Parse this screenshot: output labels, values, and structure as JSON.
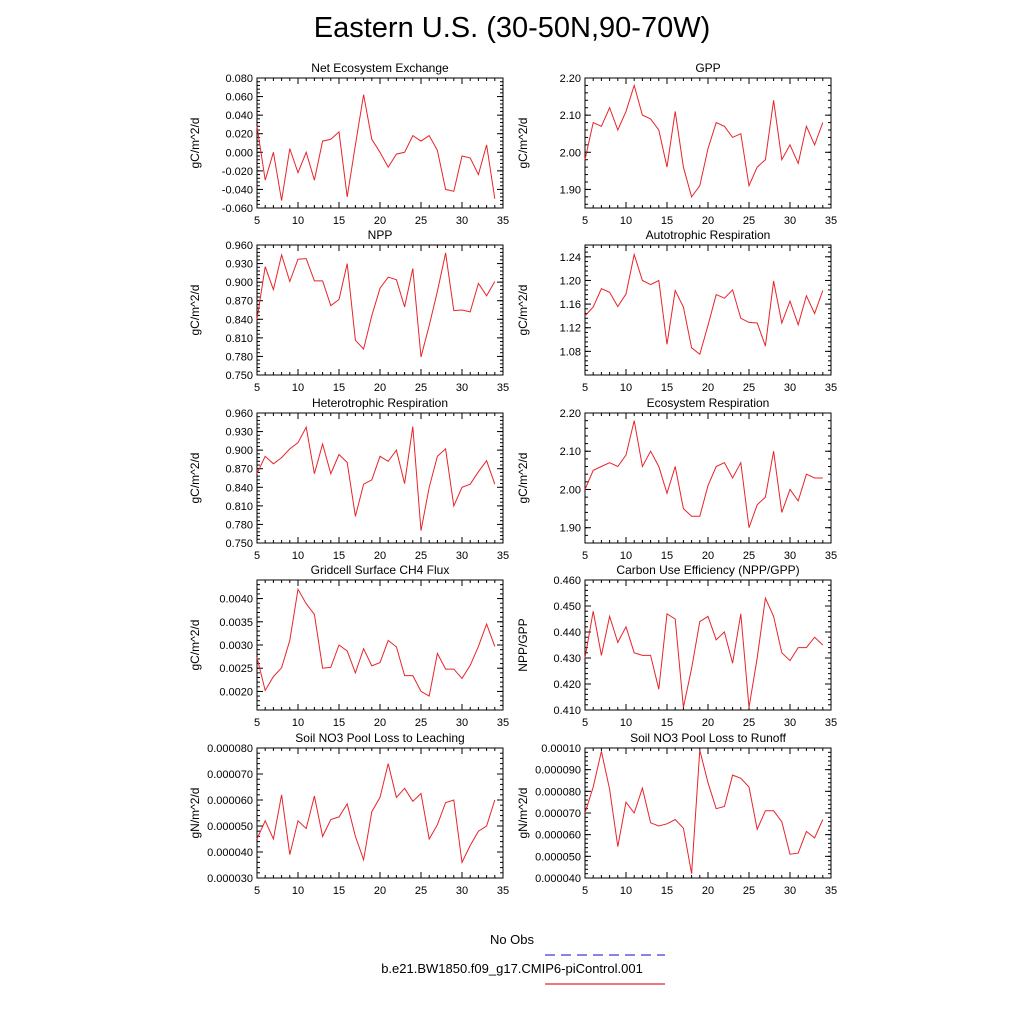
{
  "title": "Eastern U.S. (30-50N,90-70W)",
  "legend": [
    {
      "label": "No Obs",
      "color": "#3a3ad6",
      "dash": true
    },
    {
      "label": "b.e21.BW1850.f09_g17.CMIP6-piControl.001",
      "color": "#e8242a",
      "dash": false
    }
  ],
  "chart_data": [
    {
      "type": "line",
      "title": "Net Ecosystem Exchange",
      "ylabel": "gC/m^2/d",
      "xlim": [
        5,
        35
      ],
      "ylim": [
        -0.06,
        0.08
      ],
      "xticks": [
        5,
        10,
        15,
        20,
        25,
        30,
        35
      ],
      "yticks": [
        -0.06,
        -0.04,
        -0.02,
        0.0,
        0.02,
        0.04,
        0.06,
        0.08
      ],
      "ytick_labels": [
        "-0.060",
        "-0.040",
        "-0.020",
        "0.000",
        "0.020",
        "0.040",
        "0.060",
        "0.080"
      ],
      "series": [
        {
          "color": "#e8242a",
          "x": [
            5,
            6,
            7,
            8,
            9,
            10,
            11,
            12,
            13,
            14,
            15,
            16,
            17,
            18,
            19,
            20,
            21,
            22,
            23,
            24,
            25,
            26,
            27,
            28,
            29,
            30,
            31,
            32,
            33,
            34
          ],
          "y": [
            0.028,
            -0.03,
            0.0,
            -0.052,
            0.004,
            -0.022,
            0.0,
            -0.03,
            0.012,
            0.014,
            0.022,
            -0.048,
            0.008,
            0.062,
            0.014,
            0.0,
            -0.016,
            -0.002,
            0.0,
            0.018,
            0.012,
            0.018,
            0.002,
            -0.04,
            -0.042,
            -0.004,
            -0.006,
            -0.024,
            0.008,
            -0.05
          ]
        }
      ]
    },
    {
      "type": "line",
      "title": "GPP",
      "ylabel": "gC/m^2/d",
      "xlim": [
        5,
        35
      ],
      "ylim": [
        1.85,
        2.2
      ],
      "xticks": [
        5,
        10,
        15,
        20,
        25,
        30,
        35
      ],
      "yticks": [
        1.9,
        2.0,
        2.1,
        2.2
      ],
      "ytick_labels": [
        "1.90",
        "2.00",
        "2.10",
        "2.20"
      ],
      "series": [
        {
          "color": "#e8242a",
          "x": [
            5,
            6,
            7,
            8,
            9,
            10,
            11,
            12,
            13,
            14,
            15,
            16,
            17,
            18,
            19,
            20,
            21,
            22,
            23,
            24,
            25,
            26,
            27,
            28,
            29,
            30,
            31,
            32,
            33,
            34
          ],
          "y": [
            1.98,
            2.08,
            2.07,
            2.12,
            2.06,
            2.11,
            2.18,
            2.1,
            2.09,
            2.06,
            1.96,
            2.11,
            1.96,
            1.88,
            1.91,
            2.01,
            2.08,
            2.07,
            2.04,
            2.05,
            1.91,
            1.96,
            1.98,
            2.14,
            1.98,
            2.02,
            1.97,
            2.07,
            2.02,
            2.08
          ]
        }
      ]
    },
    {
      "type": "line",
      "title": "NPP",
      "ylabel": "gC/m^2/d",
      "xlim": [
        5,
        35
      ],
      "ylim": [
        0.75,
        0.96
      ],
      "xticks": [
        5,
        10,
        15,
        20,
        25,
        30,
        35
      ],
      "yticks": [
        0.75,
        0.78,
        0.81,
        0.84,
        0.87,
        0.9,
        0.93,
        0.96
      ],
      "ytick_labels": [
        "0.750",
        "0.780",
        "0.810",
        "0.840",
        "0.870",
        "0.900",
        "0.930",
        "0.960"
      ],
      "series": [
        {
          "color": "#e8242a",
          "x": [
            5,
            6,
            7,
            8,
            9,
            10,
            11,
            12,
            13,
            14,
            15,
            16,
            17,
            18,
            19,
            20,
            21,
            22,
            23,
            24,
            25,
            26,
            27,
            28,
            29,
            30,
            31,
            32,
            33,
            34
          ],
          "y": [
            0.84,
            0.925,
            0.888,
            0.944,
            0.901,
            0.937,
            0.938,
            0.902,
            0.902,
            0.862,
            0.872,
            0.93,
            0.806,
            0.792,
            0.846,
            0.89,
            0.908,
            0.904,
            0.86,
            0.922,
            0.779,
            0.83,
            0.885,
            0.947,
            0.854,
            0.855,
            0.852,
            0.898,
            0.878,
            0.901
          ]
        }
      ]
    },
    {
      "type": "line",
      "title": "Autotrophic Respiration",
      "ylabel": "gC/m^2/d",
      "xlim": [
        5,
        35
      ],
      "ylim": [
        1.04,
        1.26
      ],
      "xticks": [
        5,
        10,
        15,
        20,
        25,
        30,
        35
      ],
      "yticks": [
        1.08,
        1.12,
        1.16,
        1.2,
        1.24
      ],
      "ytick_labels": [
        "1.08",
        "1.12",
        "1.16",
        "1.20",
        "1.24"
      ],
      "series": [
        {
          "color": "#e8242a",
          "x": [
            5,
            6,
            7,
            8,
            9,
            10,
            11,
            12,
            13,
            14,
            15,
            16,
            17,
            18,
            19,
            20,
            21,
            22,
            23,
            24,
            25,
            26,
            27,
            28,
            29,
            30,
            31,
            32,
            33,
            34
          ],
          "y": [
            1.14,
            1.155,
            1.186,
            1.18,
            1.156,
            1.177,
            1.244,
            1.2,
            1.193,
            1.2,
            1.092,
            1.183,
            1.155,
            1.086,
            1.075,
            1.124,
            1.176,
            1.17,
            1.184,
            1.136,
            1.129,
            1.128,
            1.089,
            1.199,
            1.128,
            1.165,
            1.125,
            1.174,
            1.144,
            1.183
          ]
        }
      ]
    },
    {
      "type": "line",
      "title": "Heterotrophic Respiration",
      "ylabel": "gC/m^2/d",
      "xlim": [
        5,
        35
      ],
      "ylim": [
        0.75,
        0.96
      ],
      "xticks": [
        5,
        10,
        15,
        20,
        25,
        30,
        35
      ],
      "yticks": [
        0.75,
        0.78,
        0.81,
        0.84,
        0.87,
        0.9,
        0.93,
        0.96
      ],
      "ytick_labels": [
        "0.750",
        "0.780",
        "0.810",
        "0.840",
        "0.870",
        "0.900",
        "0.930",
        "0.960"
      ],
      "series": [
        {
          "color": "#e8242a",
          "x": [
            5,
            6,
            7,
            8,
            9,
            10,
            11,
            12,
            13,
            14,
            15,
            16,
            17,
            18,
            19,
            20,
            21,
            22,
            23,
            24,
            25,
            26,
            27,
            28,
            29,
            30,
            31,
            32,
            33,
            34
          ],
          "y": [
            0.862,
            0.89,
            0.878,
            0.888,
            0.902,
            0.912,
            0.937,
            0.862,
            0.91,
            0.862,
            0.893,
            0.88,
            0.793,
            0.845,
            0.852,
            0.89,
            0.882,
            0.9,
            0.846,
            0.938,
            0.77,
            0.84,
            0.89,
            0.902,
            0.81,
            0.84,
            0.845,
            0.865,
            0.883,
            0.845
          ]
        }
      ]
    },
    {
      "type": "line",
      "title": "Ecosystem Respiration",
      "ylabel": "gC/m^2/d",
      "xlim": [
        5,
        35
      ],
      "ylim": [
        1.86,
        2.2
      ],
      "xticks": [
        5,
        10,
        15,
        20,
        25,
        30,
        35
      ],
      "yticks": [
        1.9,
        2.0,
        2.1,
        2.2
      ],
      "ytick_labels": [
        "1.90",
        "2.00",
        "2.10",
        "2.20"
      ],
      "series": [
        {
          "color": "#e8242a",
          "x": [
            5,
            6,
            7,
            8,
            9,
            10,
            11,
            12,
            13,
            14,
            15,
            16,
            17,
            18,
            19,
            20,
            21,
            22,
            23,
            24,
            25,
            26,
            27,
            28,
            29,
            30,
            31,
            32,
            33,
            34
          ],
          "y": [
            2.0,
            2.05,
            2.06,
            2.07,
            2.06,
            2.09,
            2.18,
            2.06,
            2.1,
            2.06,
            1.99,
            2.06,
            1.95,
            1.93,
            1.93,
            2.01,
            2.06,
            2.07,
            2.03,
            2.07,
            1.9,
            1.96,
            1.98,
            2.1,
            1.94,
            2.0,
            1.97,
            2.04,
            2.03,
            2.03
          ]
        }
      ]
    },
    {
      "type": "line",
      "title": "Gridcell Surface CH4 Flux",
      "ylabel": "gC/m^2/d",
      "xlim": [
        5,
        35
      ],
      "ylim": [
        0.0016,
        0.0044
      ],
      "xticks": [
        5,
        10,
        15,
        20,
        25,
        30,
        35
      ],
      "yticks": [
        0.002,
        0.0025,
        0.003,
        0.0035,
        0.004
      ],
      "ytick_labels": [
        "0.0020",
        "0.0025",
        "0.0030",
        "0.0035",
        "0.0040"
      ],
      "series": [
        {
          "color": "#e8242a",
          "x": [
            5,
            6,
            7,
            8,
            9,
            10,
            11,
            12,
            13,
            14,
            15,
            16,
            17,
            18,
            19,
            20,
            21,
            22,
            23,
            24,
            25,
            26,
            27,
            28,
            29,
            30,
            31,
            32,
            33,
            34
          ],
          "y": [
            0.00273,
            0.00202,
            0.00232,
            0.00251,
            0.0031,
            0.0042,
            0.00389,
            0.00366,
            0.0025,
            0.00252,
            0.003,
            0.00287,
            0.0024,
            0.00292,
            0.00255,
            0.00262,
            0.0031,
            0.00296,
            0.00234,
            0.00234,
            0.002,
            0.0019,
            0.00282,
            0.00248,
            0.00248,
            0.00228,
            0.00256,
            0.00297,
            0.00345,
            0.00297
          ]
        }
      ]
    },
    {
      "type": "line",
      "title": "Carbon Use Efficiency (NPP/GPP)",
      "ylabel": "NPP/GPP",
      "xlim": [
        5,
        35
      ],
      "ylim": [
        0.41,
        0.46
      ],
      "xticks": [
        5,
        10,
        15,
        20,
        25,
        30,
        35
      ],
      "yticks": [
        0.41,
        0.42,
        0.43,
        0.44,
        0.45,
        0.46
      ],
      "ytick_labels": [
        "0.410",
        "0.420",
        "0.430",
        "0.440",
        "0.450",
        "0.460"
      ],
      "series": [
        {
          "color": "#e8242a",
          "x": [
            5,
            6,
            7,
            8,
            9,
            10,
            11,
            12,
            13,
            14,
            15,
            16,
            17,
            18,
            19,
            20,
            21,
            22,
            23,
            24,
            25,
            26,
            27,
            28,
            29,
            30,
            31,
            32,
            33,
            34
          ],
          "y": [
            0.43,
            0.448,
            0.431,
            0.446,
            0.436,
            0.442,
            0.432,
            0.431,
            0.431,
            0.418,
            0.447,
            0.445,
            0.411,
            0.426,
            0.444,
            0.446,
            0.437,
            0.44,
            0.428,
            0.447,
            0.411,
            0.43,
            0.453,
            0.446,
            0.432,
            0.429,
            0.434,
            0.434,
            0.438,
            0.435
          ]
        }
      ]
    },
    {
      "type": "line",
      "title": "Soil NO3 Pool Loss to Leaching",
      "ylabel": "gN/m^2/d",
      "xlim": [
        5,
        35
      ],
      "ylim": [
        3e-05,
        8e-05
      ],
      "xticks": [
        5,
        10,
        15,
        20,
        25,
        30,
        35
      ],
      "yticks": [
        3e-05,
        4e-05,
        5e-05,
        6e-05,
        7e-05,
        8e-05
      ],
      "ytick_labels": [
        "0.000030",
        "0.000040",
        "0.000050",
        "0.000060",
        "0.000070",
        "0.000080"
      ],
      "series": [
        {
          "color": "#e8242a",
          "x": [
            5,
            6,
            7,
            8,
            9,
            10,
            11,
            12,
            13,
            14,
            15,
            16,
            17,
            18,
            19,
            20,
            21,
            22,
            23,
            24,
            25,
            26,
            27,
            28,
            29,
            30,
            31,
            32,
            33,
            34
          ],
          "y": [
            4.5e-05,
            5.2e-05,
            4.5e-05,
            6.2e-05,
            3.9e-05,
            5.2e-05,
            4.9e-05,
            6.15e-05,
            4.6e-05,
            5.25e-05,
            5.35e-05,
            5.85e-05,
            4.6e-05,
            3.7e-05,
            5.55e-05,
            6.1e-05,
            7.4e-05,
            6.1e-05,
            6.45e-05,
            5.95e-05,
            6.25e-05,
            4.5e-05,
            5.05e-05,
            5.9e-05,
            6e-05,
            3.6e-05,
            4.25e-05,
            4.8e-05,
            5e-05,
            6e-05
          ]
        }
      ]
    },
    {
      "type": "line",
      "title": "Soil NO3 Pool Loss to Runoff",
      "ylabel": "gN/m^2/d",
      "xlim": [
        5,
        35
      ],
      "ylim": [
        4e-05,
        0.0001
      ],
      "xticks": [
        5,
        10,
        15,
        20,
        25,
        30,
        35
      ],
      "yticks": [
        4e-05,
        5e-05,
        6e-05,
        7e-05,
        8e-05,
        9e-05,
        0.0001
      ],
      "ytick_labels": [
        "0.000040",
        "0.000050",
        "0.000060",
        "0.000070",
        "0.000080",
        "0.000090",
        "0.00010"
      ],
      "series": [
        {
          "color": "#e8242a",
          "x": [
            5,
            6,
            7,
            8,
            9,
            10,
            11,
            12,
            13,
            14,
            15,
            16,
            17,
            18,
            19,
            20,
            21,
            22,
            23,
            24,
            25,
            26,
            27,
            28,
            29,
            30,
            31,
            32,
            33,
            34
          ],
          "y": [
            7e-05,
            8.2e-05,
            9.85e-05,
            8.1e-05,
            5.45e-05,
            7.5e-05,
            7e-05,
            8.15e-05,
            6.55e-05,
            6.4e-05,
            6.5e-05,
            6.7e-05,
            6.3e-05,
            4.2e-05,
            9.9e-05,
            8.4e-05,
            7.2e-05,
            7.3e-05,
            8.75e-05,
            8.6e-05,
            8.2e-05,
            6.25e-05,
            7.1e-05,
            7.1e-05,
            6.6e-05,
            5.1e-05,
            5.15e-05,
            6.15e-05,
            5.85e-05,
            6.7e-05
          ]
        }
      ]
    }
  ]
}
